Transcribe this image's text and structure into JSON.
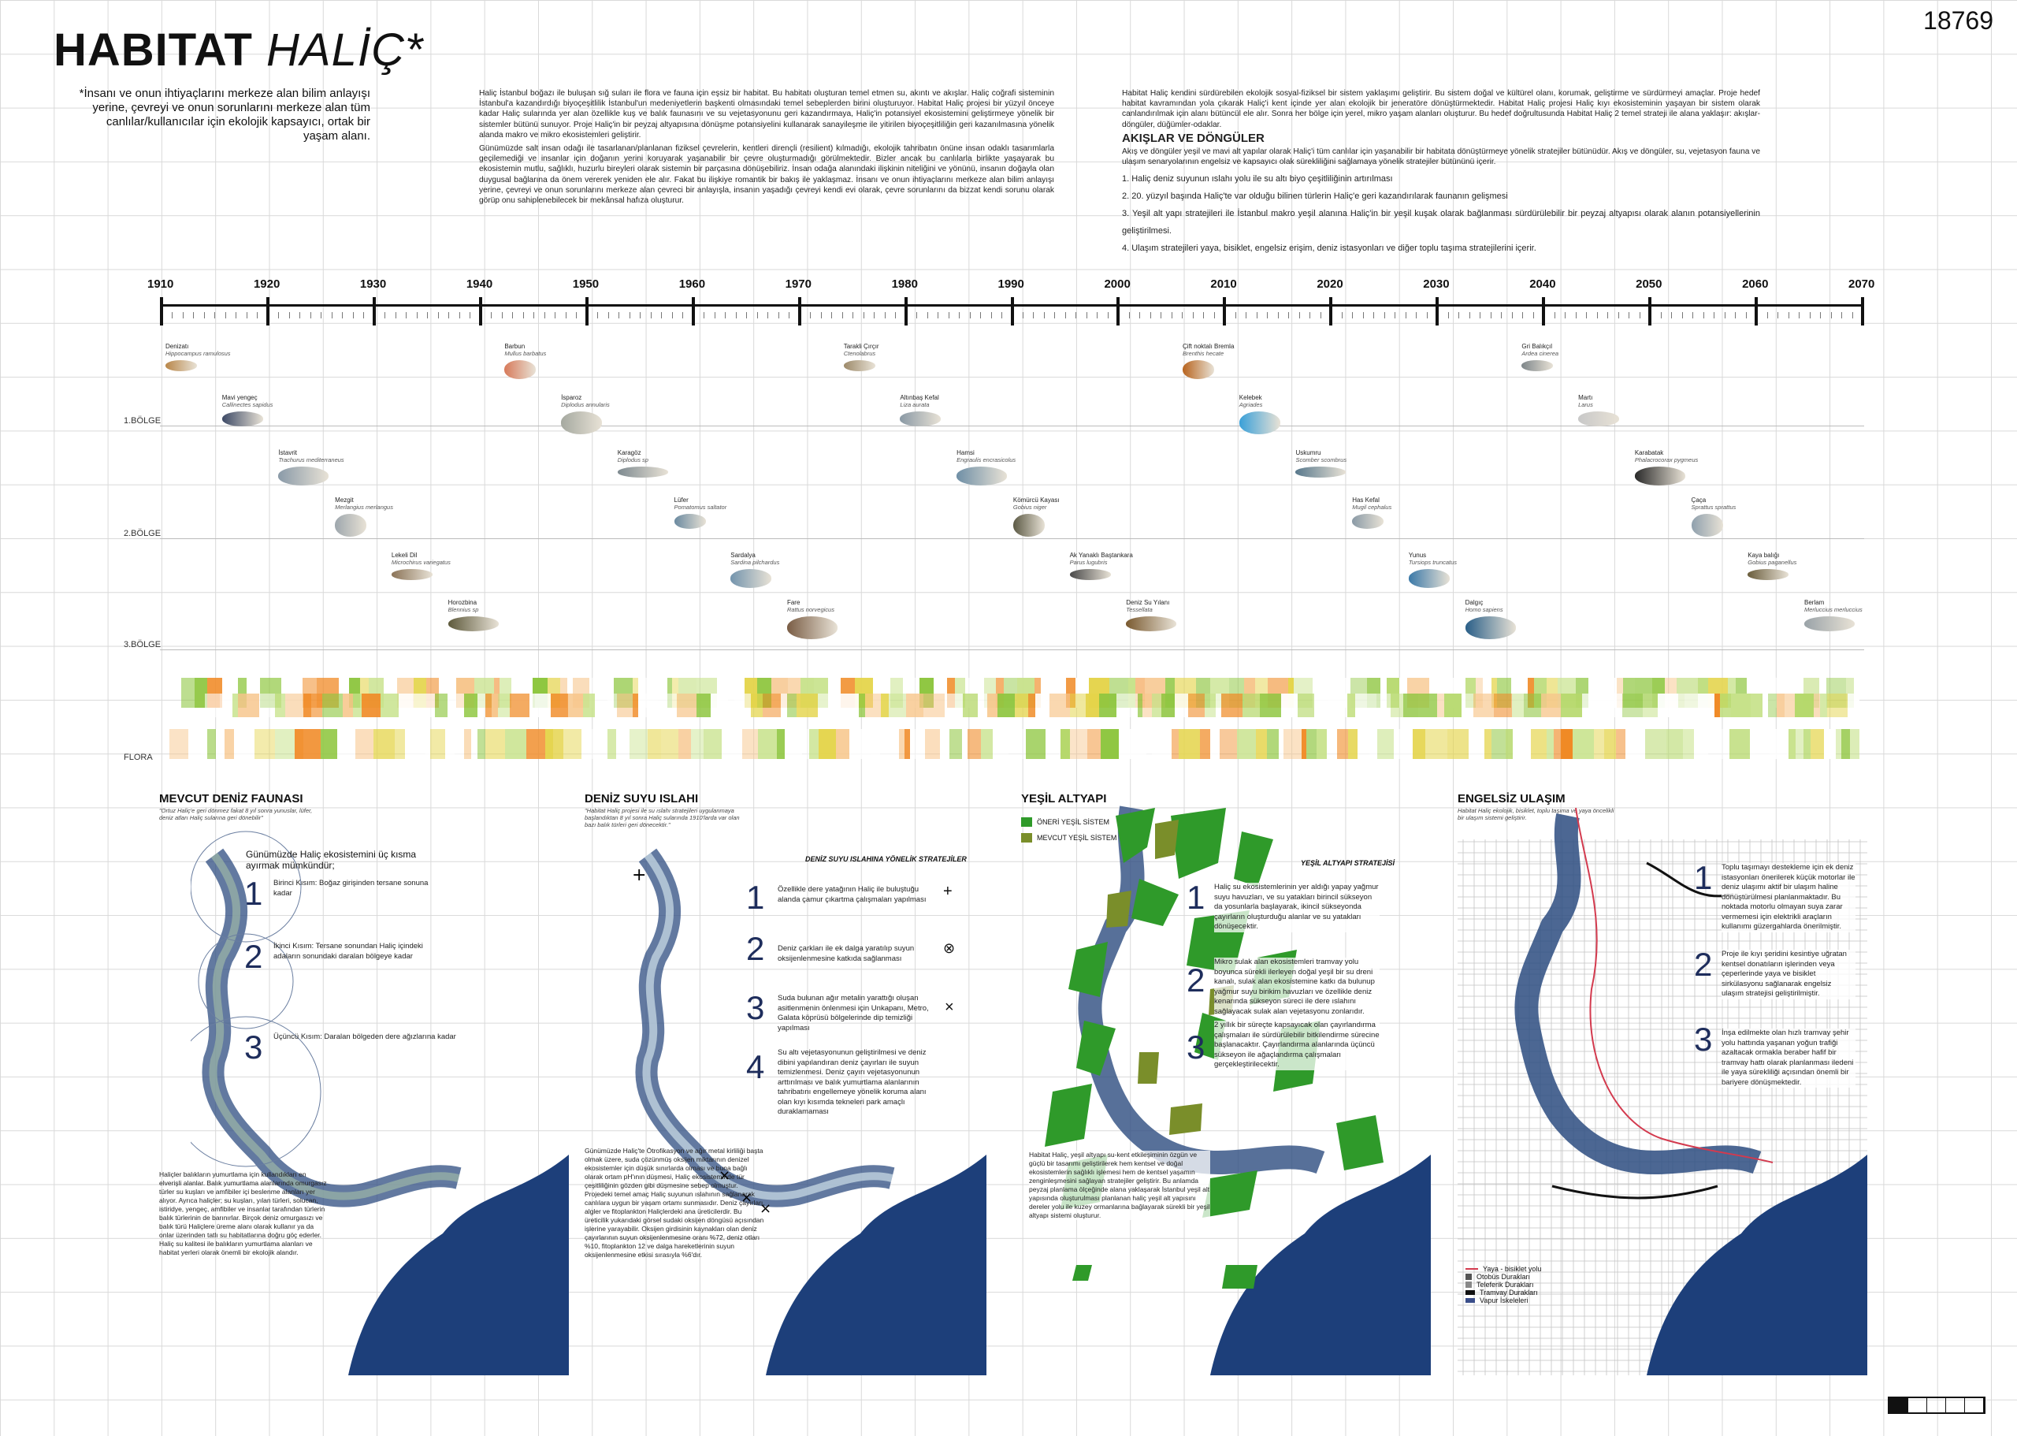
{
  "header": {
    "title_bold": "HABITAT",
    "title_italic": "HALİÇ*",
    "sheet_number": "18769",
    "subtitle": "*İnsanı ve onun ihtiyaçlarını merkeze alan bilim anlayışı yerine, çevreyi ve onun sorunlarını merkeze alan tüm canlılar/kullanıcılar için ekolojik kapsayıcı, ortak bir yaşam alanı."
  },
  "intro": {
    "col1": [
      "Haliç İstanbul boğazı ile buluşan sığ suları ile flora ve fauna için eşsiz bir habitat. Bu habitatı oluşturan temel etmen su, akıntı ve akışlar. Haliç coğrafi sisteminin İstanbul'a kazandırdığı biyoçeşitlilik İstanbul'un medeniyetlerin başkenti olmasındaki temel sebeplerden birini oluşturuyor. Habitat Haliç projesi bir yüzyıl önceye kadar Haliç sularında yer alan özellikle kuş ve balık faunasını ve su vejetasyonunu geri kazandırmaya, Haliç'in potansiyel ekosistemini geliştirmeye yönelik bir sistemler bütünü sunuyor. Proje Haliç'in bir peyzaj altyapısına dönüşme potansiyelini kullanarak sanayileşme ile yitirilen biyoçeşitliliğin geri kazanılmasına yönelik alanda makro ve mikro ekosistemleri geliştirir.",
      "Günümüzde salt insan odağı ile tasarlanan/planlanan fiziksel çevrelerin, kentleri dirençli (resilient) kılmadığı, ekolojik tahribatın önüne insan odaklı tasarımlarla geçilemediği ve insanlar için doğanın yerini koruyarak yaşanabilir bir çevre oluşturmadığı görülmektedir. Bizler ancak bu canlılarla birlikte yaşayarak bu ekosistemin mutlu, sağlıklı, huzurlu bireyleri olarak sistemin bir parçasına dönüşebiliriz. İnsan odağa alanındaki ilişkinin niteliğini ve yönünü, insanın doğayla olan duygusal bağlarına da önem vererek yeniden ele alır. Fakat bu ilişkiye romantik bir bakış ile yaklaşmaz. İnsanı ve onun ihtiyaçlarını merkeze alan bilim anlayışı yerine, çevreyi ve onun sorunlarını merkeze alan çevreci bir anlayışla, insanın yaşadığı çevreyi kendi evi olarak, çevre sorunlarını da bizzat kendi sorunu olarak görüp onu sahiplenebilecek bir mekânsal hafıza oluşturur."
    ],
    "col2": "Habitat Haliç kendini sürdürebilen ekolojik sosyal-fiziksel bir sistem yaklaşımı geliştirir. Bu sistem doğal ve kültürel olanı, korumak, geliştirme ve sürdürmeyi amaçlar. Proje hedef habitat kavramından yola çıkarak Haliç'i kent içinde yer alan ekolojik bir jeneratöre dönüştürmektedir. Habitat Haliç projesi Haliç kıyı ekosisteminin yaşayan bir sistem olarak canlandırılmak için alanı bütüncül ele alır. Sonra her bölge için yerel, mikro yaşam alanları oluşturur. Bu hedef doğrultusunda Habitat Haliç 2 temel strateji ile alana yaklaşır: akışlar- döngüler, düğümler-odaklar.",
    "heading": "AKIŞLAR VE DÖNGÜLER",
    "heading_text": "Akış ve döngüler yeşil ve mavi alt yapılar olarak Haliç'i tüm canlılar için yaşanabilir bir habitata dönüştürmeye yönelik stratejiler bütünüdür. Akış ve döngüler, su, vejetasyon fauna ve ulaşım senaryolarının engelsiz ve kapsayıcı olak sürekliliğini sağlamaya yönelik stratejiler bütününü içerir.",
    "items": [
      "1. Haliç deniz suyunun ıslahı yolu ile su altı biyo çeşitliliğinin artırılması",
      "2. 20. yüzyıl başında Haliç'te var olduğu bilinen türlerin Haliç'e geri kazandırılarak faunanın gelişmesi",
      "3. Yeşil alt yapı stratejileri ile İstanbul makro yeşil alanına Haliç'in bir yeşil kuşak olarak bağlanması sürdürülebilir bir peyzaj altyapısı olarak alanın potansiyellerinin geliştirilmesi.",
      "4. Ulaşım stratejileri yaya, bisiklet, engelsiz erişim, deniz istasyonları ve diğer toplu taşıma stratejilerini içerir."
    ]
  },
  "timeline": {
    "years": [
      "1910",
      "1920",
      "1930",
      "1940",
      "1950",
      "1960",
      "1970",
      "1980",
      "1990",
      "2000",
      "2010",
      "2020",
      "2030",
      "2040",
      "2050",
      "2060",
      "2070"
    ],
    "zones": [
      "1.BÖLGE",
      "2.BÖLGE",
      "3.BÖLGE",
      "FLORA"
    ]
  },
  "species": [
    {
      "name": "Denizatı",
      "latin": "Hippocampus ramulosus",
      "color": "#b9874a"
    },
    {
      "name": "Mavi yengeç",
      "latin": "Callinectes sapidus",
      "color": "#3d4a66"
    },
    {
      "name": "İstavrit",
      "latin": "Trachurus mediterraneus",
      "color": "#8a9aa8"
    },
    {
      "name": "Mezgit",
      "latin": "Merlangius merlangus",
      "color": "#9ea7ad"
    },
    {
      "name": "Lekeli Dil",
      "latin": "Microchirus variegatus",
      "color": "#8b7458"
    },
    {
      "name": "Horozbina",
      "latin": "Blennius sp",
      "color": "#5e5a3c"
    },
    {
      "name": "Barbun",
      "latin": "Mullus barbatus",
      "color": "#d77a5a"
    },
    {
      "name": "İsparoz",
      "latin": "Diplodus annularis",
      "color": "#a5a9a0"
    },
    {
      "name": "Karagöz",
      "latin": "Diplodus sp",
      "color": "#7e8a90"
    },
    {
      "name": "Lüfer",
      "latin": "Pomatomus saltator",
      "color": "#6b8aa0"
    },
    {
      "name": "Sardalya",
      "latin": "Sardina pilchardus",
      "color": "#7394ad"
    },
    {
      "name": "Fare",
      "latin": "Rattus norvegicus",
      "color": "#7a5d45"
    },
    {
      "name": "Tarakli Çırçır",
      "latin": "Ctenolabrus",
      "color": "#9d8a6a"
    },
    {
      "name": "Altınbaş Kefal",
      "latin": "Liza aurata",
      "color": "#8a99a5"
    },
    {
      "name": "Hamsi",
      "latin": "Engraulis encrasicolus",
      "color": "#6f8fa6"
    },
    {
      "name": "Kömürcü Kayası",
      "latin": "Gobius niger",
      "color": "#5c5a45"
    },
    {
      "name": "Ak Yanaklı Baştankara",
      "latin": "Parus lugubris",
      "color": "#4a4a4a"
    },
    {
      "name": "Deniz Su Yılanı",
      "latin": "Tessellata",
      "color": "#7a5a30"
    },
    {
      "name": "Çift noktalı Bremla",
      "latin": "Brenthis hecate",
      "color": "#b8641e"
    },
    {
      "name": "Kelebek",
      "latin": "Agriades",
      "color": "#3aa0d8"
    },
    {
      "name": "Uskumru",
      "latin": "Scomber scombrus",
      "color": "#58788c"
    },
    {
      "name": "Has Kefal",
      "latin": "Mugil cephalus",
      "color": "#8a9aa6"
    },
    {
      "name": "Yunus",
      "latin": "Tursiops truncatus",
      "color": "#3b79a8"
    },
    {
      "name": "Dalgıç",
      "latin": "Homo sapiens",
      "color": "#2a5f88"
    },
    {
      "name": "Gri Balıkçıl",
      "latin": "Ardea cinerea",
      "color": "#7e868a"
    },
    {
      "name": "Martı",
      "latin": "Larus",
      "color": "#c8c8c8"
    },
    {
      "name": "Karabatak",
      "latin": "Phalacrocorax pygmeus",
      "color": "#2a2a2a"
    },
    {
      "name": "Çaça",
      "latin": "Sprattus sprattus",
      "color": "#8fa0ad"
    },
    {
      "name": "Kaya balığı",
      "latin": "Gobius paganellus",
      "color": "#6a5d3c"
    },
    {
      "name": "Berlam",
      "latin": "Merluccius merluccius",
      "color": "#9aa3a8"
    }
  ],
  "panels": [
    {
      "title": "MEVCUT DENİZ FAUNASI",
      "quote": "\"Ortuz Haliç'e geri dönmez fakat 8 yıl sonra yunuslar, lüfer, deniz atları Haliç sularına geri dönebilir\"",
      "intro": "Günümüzde Haliç ekosistemini üç kısma ayırmak mümkündür;",
      "steps": [
        {
          "n": "1",
          "text": "Birinci Kısım: Boğaz girişinden tersane sonuna kadar"
        },
        {
          "n": "2",
          "text": "İkinci Kısım: Tersane sonundan Haliç içindeki adaların sonundaki daralan bölgeye kadar"
        },
        {
          "n": "3",
          "text": "Üçüncü Kısım: Daralan bölgeden dere ağızlarına kadar"
        }
      ],
      "body": "Haliçler balıkların yumurtlama için kullandıkları en elverişli alanlar. Balık yumurtlama alanlarında omurgasız türler su kuşları ve amfibiler içi beslenme alanları yer alıyor. Ayrıca haliçler; su kuşları, yılan türleri, solucan, istiridye, yengeç, amfibiler ve insanlar tarafından türlerin balık türlerinin de barınırlar. Birçok deniz omurgasızı ve balık türü Haliçlere üreme alanı olarak kullanır ya da onlar üzerinden tatlı su habitatlarına doğru göç ederler. Haliç su kalitesi ile balıkların yumurtlama alanları ve habitat yerleri olarak önemli bir ekolojik alandır."
    },
    {
      "title": "DENİZ SUYU ISLAHI",
      "quote": "\"Habitat Haliç projesi ile su ıslahı stratejileri uygulanmaya başlandıktan 8 yıl sonra Haliç sularında 1910'larda var olan bazı balık türleri geri dönecektir.\"",
      "heading": "DENİZ SUYU ISLAHINA YÖNELİK STRATEJİLER",
      "steps": [
        {
          "n": "1",
          "text": "Özellikle dere yatağının Haliç ile buluştuğu alanda çamur çıkartma çalışmaları yapılması",
          "sym": "+"
        },
        {
          "n": "2",
          "text": "Deniz çarkları ile ek dalga yaratılıp suyun oksijenlenmesine katkıda sağlanması",
          "sym": "⊗"
        },
        {
          "n": "3",
          "text": "Suda bulunan ağır metalin yarattığı oluşan asitlenmenin önlenmesi için Unkapanı, Metro, Galata köprüsü bölgelerinde dip temizliği yapılması",
          "sym": "×"
        },
        {
          "n": "4",
          "text": "Su altı vejetasyonunun geliştirilmesi ve deniz dibini yapılandıran deniz çayırları ile suyun temizlenmesi. Deniz çayırı vejetasyonunun arttırılması ve balık yumurtlama alanlarının tahribatını engellemeye yönelik koruma alanı olan kıyı kısımda tekneleri park amaçlı duraklamaması",
          "sym": ""
        }
      ],
      "body": "Günümüzde Haliç'te Ötrofikasyon ve ağır metal kirliliği başta olmak üzere, suda çözünmüş oksijen miktarının denizel ekosistemler için düşük sınırlarda olması ve buna bağlı olarak ortam pH'ının düşmesi, Haliç ekosisteminde tür çeşitliliğinin gözden gibi düşmesine sebep olmuştur. Projedeki temel amaç Haliç suyunun ıslahının sağlanarak canlılara uygun bir yaşam ortamı sunmasıdır. Deniz çayırları, algler ve fitoplankton Haliçlerdeki ana üreticilerdir. Bu üreticilik yukarıdaki görsel sudaki oksijen döngüsü açısından işlerine yarayabilir. Oksijen girdisinin kaynakları olan deniz çayırlarının suyun oksijenlenmesine oranı %72, deniz otları %10, fitoplankton 12 ve dalga hareketlerinin suyun oksijenlenmesine etkisi sırasıyla %6'dır."
    },
    {
      "title": "YEŞİL ALTYAPI",
      "legend": [
        "ÖNERİ YEŞİL SİSTEM",
        "MEVCUT YEŞİL SİSTEM"
      ],
      "heading": "YEŞİL ALTYAPI STRATEJİSİ",
      "steps": [
        {
          "n": "1",
          "text": "Haliç su ekosistemlerinin yer aldığı yapay yağmur suyu havuzları, ve su yatakları birincil sükseyon da yosunlarla başlayarak, ikincil sükseyonda çayırların oluşturduğu alanlar ve su yatakları dönüşecektir."
        },
        {
          "n": "2",
          "text": "Mikro sulak alan ekosistemleri tramvay yolu boyunca sürekli ilerleyen doğal yeşil bir su dreni kanalı, sulak alan ekosistemine katkı da bulunup yağmur suyu birikim havuzları ve özellikle deniz kenarında sükseyon süreci ile dere ıslahını sağlayacak sulak alan vejetasyonu zonlarıdır."
        },
        {
          "n": "3",
          "text": "2 yıllık bir süreçte kapsayıcak olan çayırlandırma çalışmaları ile sürdürülebilir bitkilendirme sürecine başlanacaktır. Çayırlandırma alanlarında üçüncü sükseyon ile ağaçlandırma çalışmaları gerçekleştirilecektir."
        }
      ],
      "body": "Habitat Haliç, yeşil altyapı su-kent etkileşiminin özgün ve güçlü bir tasarımı geliştirilerek hem kentsel ve doğal ekosistemlerin sağlıklı işlemesi hem de kentsel yaşamın zenginleşmesini sağlayan stratejiler geliştirir. Bu anlamda peyzaj planlama ölçeğinde alana yaklaşarak İstanbul yeşil alt yapısında oluşturulması planlanan haliç yeşil alt yapısını dereler yolu ile kuzey ormanlarına bağlayarak sürekli bir yeşil altyapı sistemi oluşturur."
    },
    {
      "title": "ENGELSİZ ULAŞIM",
      "quote": "Habitat Haliç ekolojik, bisiklet, toplu taşıma ve yaya öncelikli bir ulaşım sistemi geliştirir.",
      "steps": [
        {
          "n": "1",
          "text": "Toplu taşımayı destekleme için ek deniz istasyonları önerilerek küçük motorlar ile deniz ulaşımı aktif bir ulaşım haline dönüştürülmesi planlanmaktadır. Bu noktada motorlu olmayan suya zarar vermemesi için elektrikli araçların kullanımı güzergahlarda önerilmiştir."
        },
        {
          "n": "2",
          "text": "Proje ile kıyı şeridini kesintiye uğratan kentsel donatıların işlerinden veya çeperlerinde yaya ve bisiklet sirkülasyonu sağlanarak engelsiz ulaşım stratejisi geliştirilmiştir."
        },
        {
          "n": "3",
          "text": "İnşa edilmekte olan hızlı tramvay şehir yolu hattında yaşanan yoğun trafiği azaltacak ormakla beraber hafif bir tramvay hattı olarak planlanması iledeni ile yaya sürekliliği açısından önemli bir bariyere dönüşmektedir."
        }
      ],
      "legend": [
        "Yaya - bisiklet yolu",
        "Otobüs Durakları",
        "Teleferik Durakları",
        "Tramvay Durakları",
        "Vapur İskeleleri"
      ]
    }
  ],
  "colors": {
    "sea": "#1d3f7a",
    "green_proposed": "#2f9a2a",
    "green_existing": "#7a8e2a",
    "flora_orange": "#f08a25",
    "flora_green": "#8ec63f",
    "flora_yellow": "#e4d44a"
  }
}
